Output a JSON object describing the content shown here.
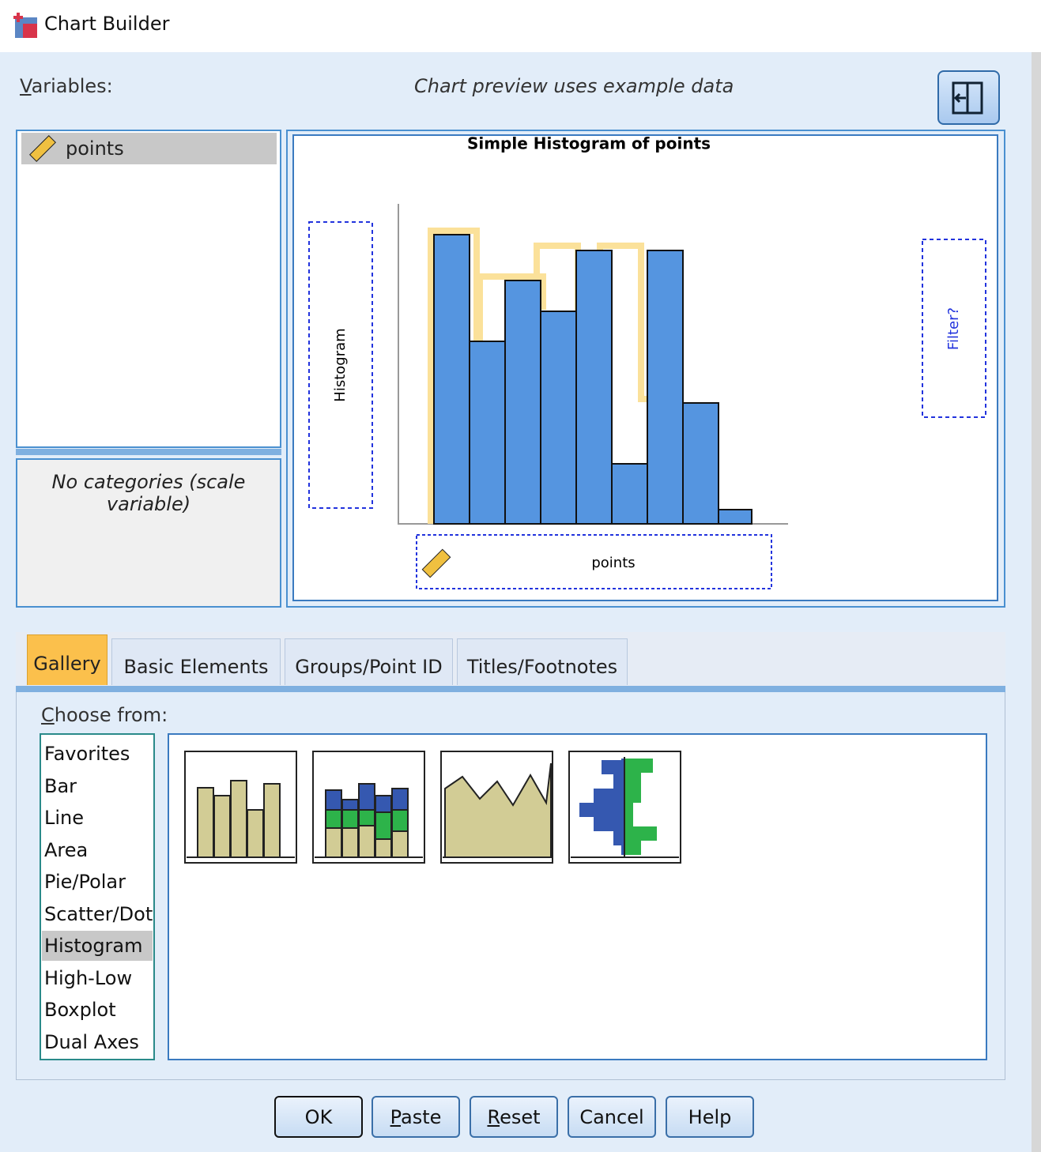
{
  "window": {
    "title": "Chart Builder"
  },
  "variables": {
    "label": "Variables:",
    "items": [
      "points"
    ],
    "category_note": "No categories (scale variable)"
  },
  "preview": {
    "note": "Chart preview uses example data",
    "title": "Simple Histogram of points",
    "y_zone": "Histogram",
    "filter_zone": "Filter?",
    "x_zone": "points"
  },
  "tabs": {
    "items": [
      "Gallery",
      "Basic Elements",
      "Groups/Point ID",
      "Titles/Footnotes"
    ],
    "selected": 0
  },
  "gallery": {
    "label": "Choose from:",
    "types": [
      "Favorites",
      "Bar",
      "Line",
      "Area",
      "Pie/Polar",
      "Scatter/Dot",
      "Histogram",
      "High-Low",
      "Boxplot",
      "Dual Axes"
    ],
    "selected": 6
  },
  "buttons": [
    "OK",
    "Paste",
    "Reset",
    "Cancel",
    "Help"
  ]
}
